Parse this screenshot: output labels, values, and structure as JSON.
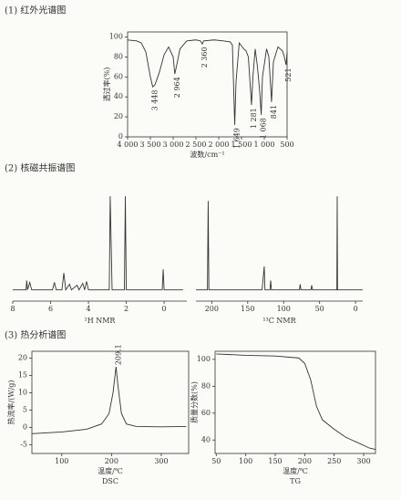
{
  "sections": [
    "(1) 红外光谱图",
    "(2) 核磁共振谱图",
    "(3) 热分析谱图"
  ],
  "chart_data": [
    {
      "type": "line",
      "frame": true,
      "color": "#333333",
      "xlabel": "波数/cm⁻¹",
      "ylabel": "透过率(%)",
      "x": [
        4000,
        3800,
        3700,
        3600,
        3500,
        3448,
        3400,
        3300,
        3200,
        3100,
        3000,
        2964,
        2930,
        2850,
        2700,
        2500,
        2400,
        2360,
        2330,
        2100,
        1900,
        1750,
        1700,
        1649,
        1620,
        1550,
        1450,
        1400,
        1350,
        1281,
        1250,
        1200,
        1150,
        1100,
        1068,
        1040,
        950,
        900,
        841,
        800,
        700,
        600,
        560,
        521,
        500
      ],
      "values": [
        97,
        96,
        94,
        85,
        60,
        50,
        52,
        65,
        82,
        90,
        80,
        63,
        70,
        88,
        96,
        97,
        96,
        93,
        96,
        97,
        96,
        95,
        92,
        12,
        55,
        94,
        88,
        86,
        80,
        32,
        60,
        88,
        70,
        45,
        22,
        60,
        88,
        80,
        35,
        75,
        90,
        86,
        80,
        72,
        85
      ],
      "xlim": [
        4000,
        500
      ],
      "xticks": [
        {
          "value": 4000,
          "label": "4 000"
        },
        {
          "value": 3500,
          "label": "3 500"
        },
        {
          "value": 3000,
          "label": "3 000"
        },
        {
          "value": 2500,
          "label": "2 500"
        },
        {
          "value": 2000,
          "label": "2 000"
        },
        {
          "value": 1500,
          "label": "1 500"
        },
        {
          "value": 1000,
          "label": "1 000"
        },
        500
      ],
      "ylim": [
        0,
        105
      ],
      "yticks": [
        0,
        20,
        40,
        60,
        80,
        100
      ],
      "annotations": [
        {
          "text": "3 448",
          "x": 3448,
          "y": 47
        },
        {
          "text": "2 964",
          "x": 2964,
          "y": 60
        },
        {
          "text": "2 360",
          "x": 2360,
          "y": 90
        },
        {
          "text": "1 649",
          "x": 1649,
          "y": 9
        },
        {
          "text": "1 281",
          "x": 1281,
          "y": 29
        },
        {
          "text": "1 068",
          "x": 1068,
          "y": 19
        },
        {
          "text": "841",
          "x": 841,
          "y": 32
        },
        {
          "text": "521",
          "x": 521,
          "y": 69
        }
      ]
    },
    {
      "type": "line",
      "frame": false,
      "color": "#333333",
      "xlabel": "¹H NMR",
      "x": [
        8,
        7.3,
        7.26,
        7.22,
        7.1,
        7.0,
        5.9,
        5.8,
        5.7,
        5.4,
        5.3,
        5.2,
        5.0,
        4.9,
        4.6,
        4.5,
        4.3,
        4.2,
        4.1,
        4.0,
        2.9,
        2.85,
        2.8,
        2.75,
        2.1,
        2.05,
        2.0,
        0.1,
        0.05,
        0,
        -1
      ],
      "values": [
        0,
        0,
        10,
        0,
        8,
        0,
        0,
        8,
        0,
        0,
        18,
        0,
        6,
        0,
        5,
        0,
        7,
        0,
        9,
        0,
        0,
        100,
        50,
        0,
        0,
        100,
        0,
        0,
        22,
        0,
        0
      ],
      "xlim": [
        8,
        -1.2
      ],
      "xticks": [
        8,
        6,
        4,
        2,
        0
      ],
      "ylim": [
        -12,
        105
      ]
    },
    {
      "type": "line",
      "frame": false,
      "color": "#333333",
      "xlabel": "¹³C NMR",
      "x": [
        222,
        206,
        205,
        204,
        130,
        127,
        126,
        119,
        118,
        117,
        78,
        77,
        76,
        62,
        61,
        60,
        26,
        25.5,
        25,
        -10
      ],
      "values": [
        0,
        0,
        95,
        0,
        0,
        25,
        0,
        0,
        10,
        0,
        0,
        6,
        0,
        0,
        5,
        0,
        0,
        100,
        0,
        0
      ],
      "xlim": [
        222,
        -10
      ],
      "xticks": [
        200,
        150,
        100,
        50,
        0
      ],
      "ylim": [
        -12,
        105
      ]
    },
    {
      "type": "line",
      "frame": true,
      "color": "#333333",
      "xlabel": "温度/℃",
      "ylabel": "热流率/(W/g)",
      "caption": "DSC",
      "x": [
        40,
        100,
        150,
        180,
        195,
        203,
        209.1,
        213,
        220,
        230,
        250,
        300,
        350
      ],
      "values": [
        -1.8,
        -1.3,
        -0.5,
        1,
        4,
        10,
        17.5,
        12,
        4,
        1,
        0.3,
        0.2,
        0.3
      ],
      "xlim": [
        40,
        355
      ],
      "xticks": [
        100,
        200,
        300
      ],
      "ylim": [
        -7.5,
        22
      ],
      "yticks": [
        -5,
        0,
        5,
        10,
        15,
        20
      ],
      "annotations": [
        {
          "text": "209.1",
          "x": 209.1,
          "y": 18
        }
      ]
    },
    {
      "type": "line",
      "frame": true,
      "color": "#333333",
      "xlabel": "温度/℃",
      "ylabel": "质量分数(%)",
      "caption": "TG",
      "x": [
        50,
        100,
        150,
        190,
        200,
        210,
        220,
        230,
        250,
        270,
        290,
        310,
        320
      ],
      "values": [
        104,
        103,
        102.5,
        101,
        97,
        85,
        65,
        55,
        48,
        42,
        38,
        34,
        33
      ],
      "xlim": [
        48,
        320
      ],
      "xticks": [
        50,
        100,
        150,
        200,
        250,
        300
      ],
      "ylim": [
        30,
        106
      ],
      "yticks": [
        40,
        60,
        80,
        100
      ]
    }
  ]
}
